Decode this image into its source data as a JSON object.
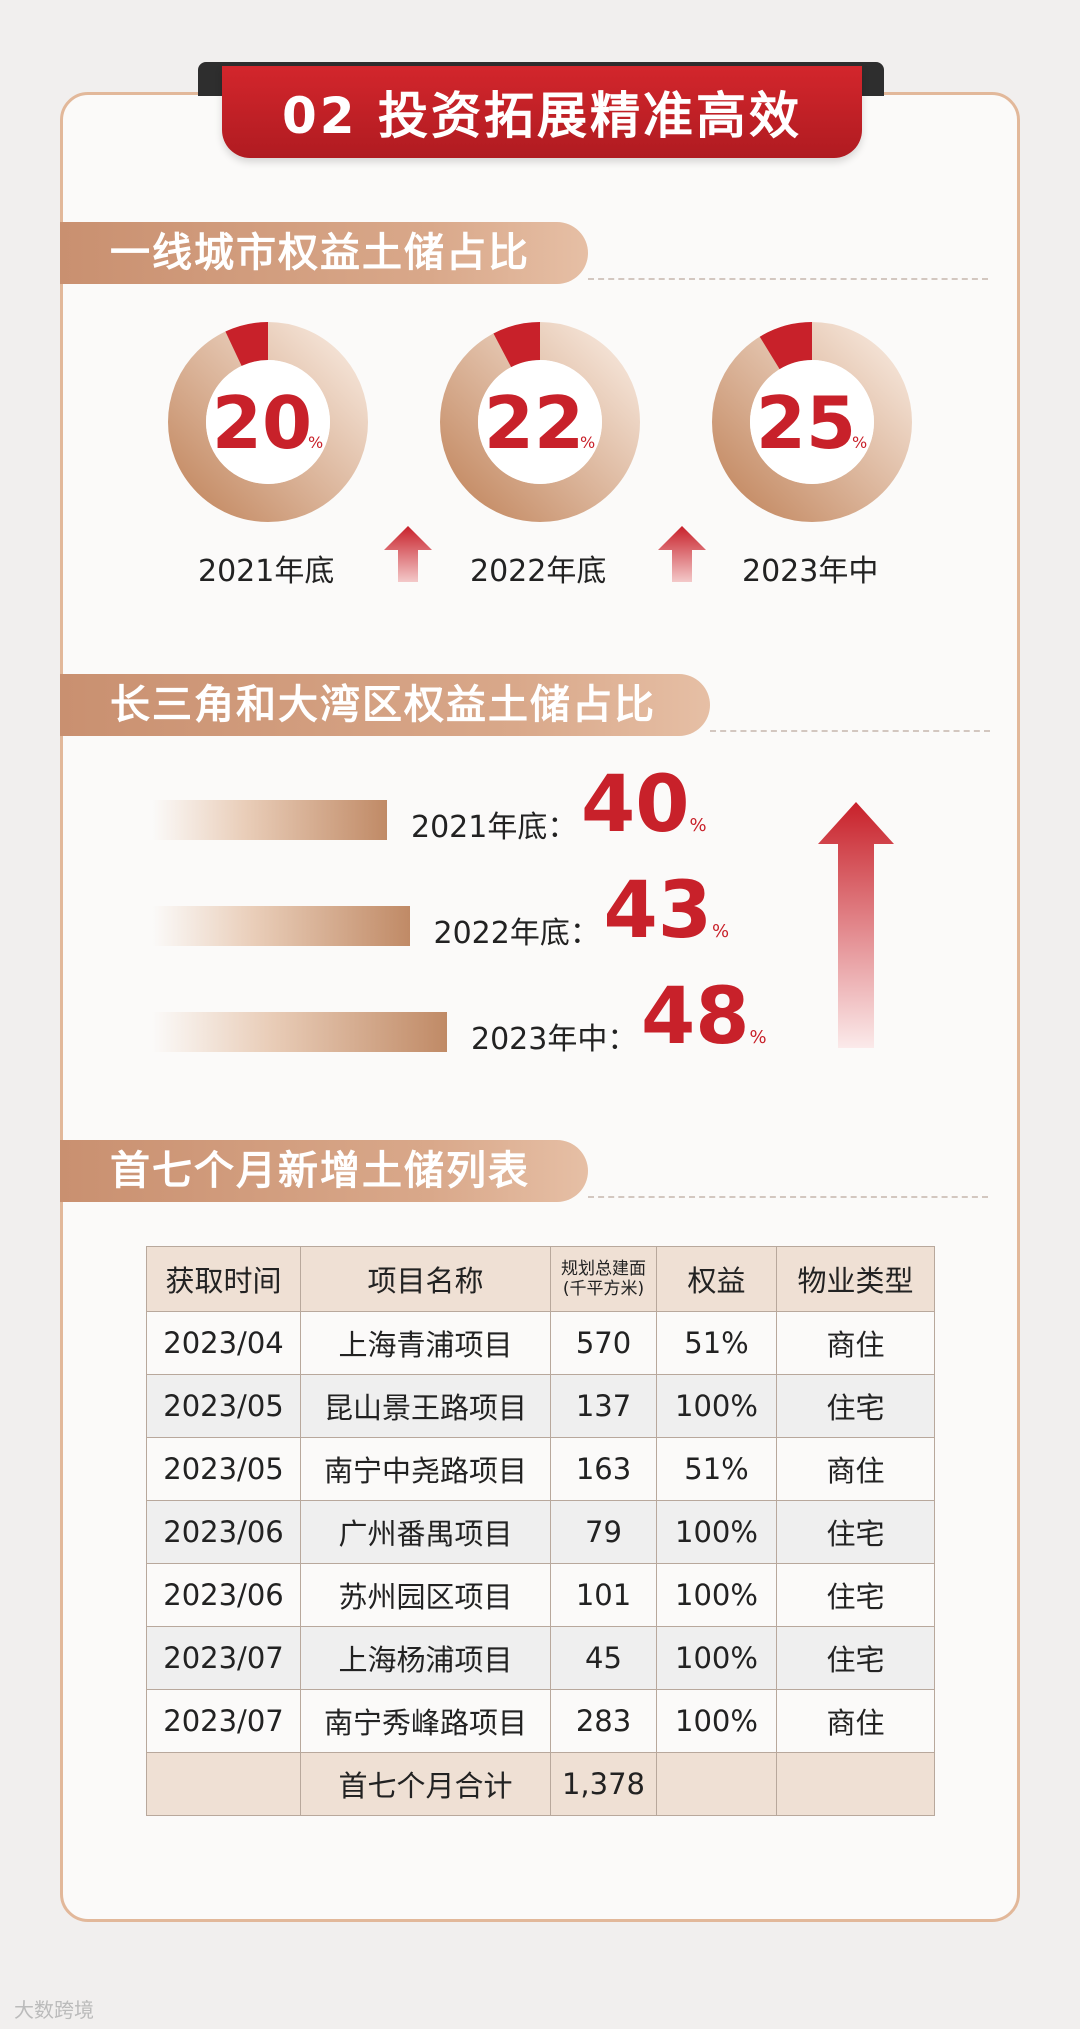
{
  "page": {
    "title": "02 投资拓展精准高效",
    "watermark": "大数跨境"
  },
  "colors": {
    "accent_red": "#c8212a",
    "tan": "#d0a07f",
    "border": "#e2b89a"
  },
  "sections": {
    "s1": {
      "title": "一线城市权益土储占比"
    },
    "s2": {
      "title": "长三角和大湾区权益土储占比"
    },
    "s3": {
      "title": "首七个月新增土储列表"
    }
  },
  "chart_data": [
    {
      "type": "pie",
      "title": "一线城市权益土储占比",
      "unit": "%",
      "items": [
        {
          "label": "2021年底",
          "value": 20
        },
        {
          "label": "2022年底",
          "value": 22
        },
        {
          "label": "2023年中",
          "value": 25
        }
      ]
    },
    {
      "type": "bar",
      "title": "长三角和大湾区权益土储占比",
      "unit": "%",
      "categories": [
        "2021年底：",
        "2022年底：",
        "2023年中："
      ],
      "values": [
        40,
        43,
        48
      ]
    },
    {
      "type": "table",
      "title": "首七个月新增土储列表",
      "headers": [
        "获取时间",
        "项目名称",
        "规划总建面",
        "(千平方米)",
        "权益",
        "物业类型"
      ],
      "rows": [
        [
          "2023/04",
          "上海青浦项目",
          "570",
          "51%",
          "商住"
        ],
        [
          "2023/05",
          "昆山景王路项目",
          "137",
          "100%",
          "住宅"
        ],
        [
          "2023/05",
          "南宁中尧路项目",
          "163",
          "51%",
          "商住"
        ],
        [
          "2023/06",
          "广州番禺项目",
          "79",
          "100%",
          "住宅"
        ],
        [
          "2023/06",
          "苏州园区项目",
          "101",
          "100%",
          "住宅"
        ],
        [
          "2023/07",
          "上海杨浦项目",
          "45",
          "100%",
          "住宅"
        ],
        [
          "2023/07",
          "南宁秀峰路项目",
          "283",
          "100%",
          "商住"
        ]
      ],
      "total": [
        "",
        "首七个月合计",
        "1,378",
        "",
        ""
      ]
    }
  ]
}
